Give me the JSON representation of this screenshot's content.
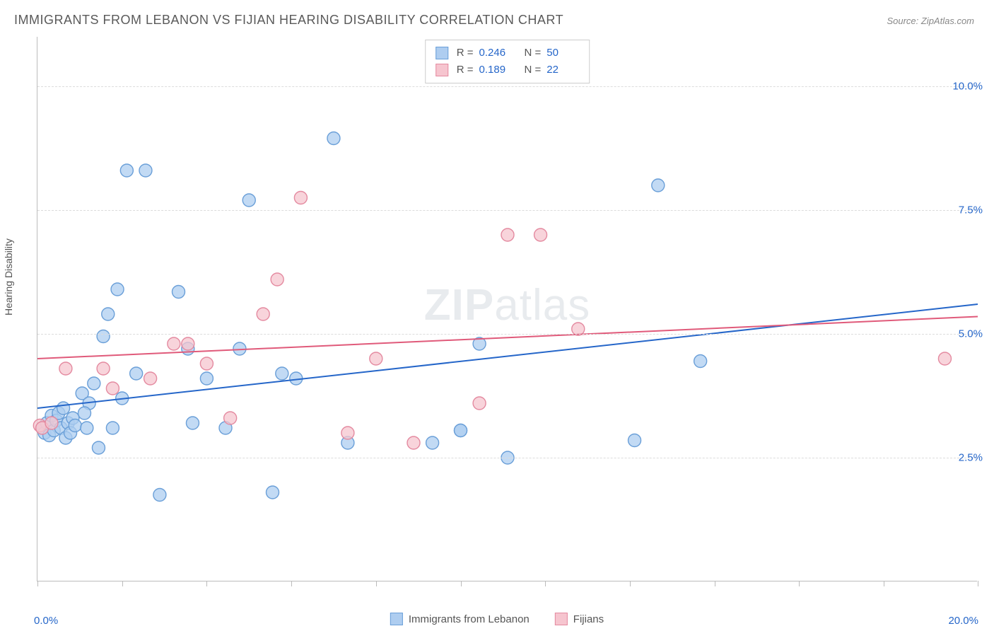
{
  "title": "IMMIGRANTS FROM LEBANON VS FIJIAN HEARING DISABILITY CORRELATION CHART",
  "source": "Source: ZipAtlas.com",
  "watermark_a": "ZIP",
  "watermark_b": "atlas",
  "y_axis_label": "Hearing Disability",
  "chart": {
    "type": "scatter",
    "xlim": [
      0,
      20
    ],
    "ylim": [
      0,
      11
    ],
    "x_ticks": [
      0.0,
      1.8,
      3.6,
      5.4,
      7.2,
      9.0,
      10.8,
      12.6,
      14.4,
      16.2,
      18.0,
      20.0
    ],
    "x_tick_labels": {
      "0": "0.0%",
      "20": "20.0%"
    },
    "y_grid": [
      2.5,
      5.0,
      7.5,
      10.0
    ],
    "y_tick_labels": [
      "2.5%",
      "5.0%",
      "7.5%",
      "10.0%"
    ],
    "background_color": "#ffffff",
    "grid_color": "#dcdcdc",
    "axis_color": "#bbbbbb",
    "tick_label_color": "#2566c9",
    "marker_radius": 9,
    "marker_stroke_width": 1.4,
    "line_width": 2,
    "series": [
      {
        "name": "Immigrants from Lebanon",
        "fill": "#aecdf0",
        "stroke": "#6a9fd8",
        "line_color": "#2566c9",
        "R": "0.246",
        "N": "50",
        "trend": {
          "x1": 0,
          "y1": 3.5,
          "x2": 20,
          "y2": 5.6
        },
        "points": [
          [
            0.1,
            3.1
          ],
          [
            0.15,
            3.0
          ],
          [
            0.2,
            3.2
          ],
          [
            0.25,
            2.95
          ],
          [
            0.3,
            3.35
          ],
          [
            0.35,
            3.05
          ],
          [
            0.4,
            3.25
          ],
          [
            0.45,
            3.4
          ],
          [
            0.5,
            3.1
          ],
          [
            0.55,
            3.5
          ],
          [
            0.6,
            2.9
          ],
          [
            0.65,
            3.2
          ],
          [
            0.7,
            3.0
          ],
          [
            0.75,
            3.3
          ],
          [
            0.8,
            3.15
          ],
          [
            0.95,
            3.8
          ],
          [
            1.05,
            3.1
          ],
          [
            1.1,
            3.6
          ],
          [
            1.2,
            4.0
          ],
          [
            1.3,
            2.7
          ],
          [
            1.4,
            4.95
          ],
          [
            1.5,
            5.4
          ],
          [
            1.6,
            3.1
          ],
          [
            1.7,
            5.9
          ],
          [
            1.8,
            3.7
          ],
          [
            1.9,
            8.3
          ],
          [
            2.1,
            4.2
          ],
          [
            2.3,
            8.3
          ],
          [
            2.6,
            1.75
          ],
          [
            3.0,
            5.85
          ],
          [
            3.2,
            4.7
          ],
          [
            3.3,
            3.2
          ],
          [
            3.6,
            4.1
          ],
          [
            4.0,
            3.1
          ],
          [
            4.3,
            4.7
          ],
          [
            4.5,
            7.7
          ],
          [
            5.0,
            1.8
          ],
          [
            5.2,
            4.2
          ],
          [
            5.5,
            4.1
          ],
          [
            6.3,
            8.95
          ],
          [
            6.6,
            2.8
          ],
          [
            8.4,
            2.8
          ],
          [
            9.0,
            3.05
          ],
          [
            9.4,
            4.8
          ],
          [
            10.0,
            2.5
          ],
          [
            12.7,
            2.85
          ],
          [
            13.2,
            8.0
          ],
          [
            14.1,
            4.45
          ],
          [
            9.0,
            3.05
          ],
          [
            1.0,
            3.4
          ]
        ]
      },
      {
        "name": "Fijians",
        "fill": "#f6c5cf",
        "stroke": "#e48aa0",
        "line_color": "#e05a7a",
        "R": "0.189",
        "N": "22",
        "trend": {
          "x1": 0,
          "y1": 4.5,
          "x2": 20,
          "y2": 5.35
        },
        "points": [
          [
            0.05,
            3.15
          ],
          [
            0.1,
            3.1
          ],
          [
            0.3,
            3.2
          ],
          [
            0.6,
            4.3
          ],
          [
            1.4,
            4.3
          ],
          [
            1.6,
            3.9
          ],
          [
            2.4,
            4.1
          ],
          [
            2.9,
            4.8
          ],
          [
            3.2,
            4.8
          ],
          [
            3.6,
            4.4
          ],
          [
            4.1,
            3.3
          ],
          [
            4.8,
            5.4
          ],
          [
            5.1,
            6.1
          ],
          [
            5.6,
            7.75
          ],
          [
            6.6,
            3.0
          ],
          [
            7.2,
            4.5
          ],
          [
            8.0,
            2.8
          ],
          [
            9.4,
            3.6
          ],
          [
            10.0,
            7.0
          ],
          [
            10.7,
            7.0
          ],
          [
            11.5,
            5.1
          ],
          [
            19.3,
            4.5
          ]
        ]
      }
    ]
  },
  "legend_bottom": [
    {
      "label": "Immigrants from Lebanon",
      "fill": "#aecdf0",
      "stroke": "#6a9fd8"
    },
    {
      "label": "Fijians",
      "fill": "#f6c5cf",
      "stroke": "#e48aa0"
    }
  ]
}
